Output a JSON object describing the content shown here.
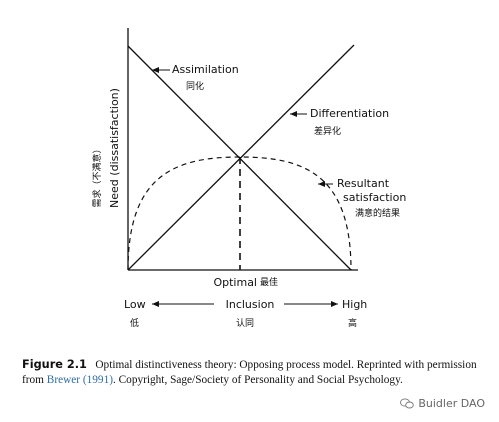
{
  "diagram": {
    "y_axis_label": "Need (dissatisfaction)",
    "y_axis_label_cn": "需求（不满意）",
    "x_axis_label": "Optimal",
    "x_axis_label_cn": "最佳",
    "lines": {
      "assimilation": {
        "label": "Assimilation",
        "label_cn": "同化"
      },
      "differentiation": {
        "label": "Differentiation",
        "label_cn": "差异化"
      },
      "resultant": {
        "label_line1": "Resultant",
        "label_line2": "satisfaction",
        "label_cn": "满意的结果"
      }
    },
    "scale": {
      "low": "Low",
      "low_cn": "低",
      "middle": "Inclusion",
      "middle_cn": "认同",
      "high": "High",
      "high_cn": "高"
    }
  },
  "caption": {
    "figure_number": "Figure 2.1",
    "text_before": "Optimal distinctiveness theory: Opposing process model. Reprinted with permission from ",
    "citation": "Brewer (1991)",
    "text_after": ". Copyright, Sage/Society of Personality and Social Psychology."
  },
  "watermark": {
    "text": "Buidler DAO"
  }
}
